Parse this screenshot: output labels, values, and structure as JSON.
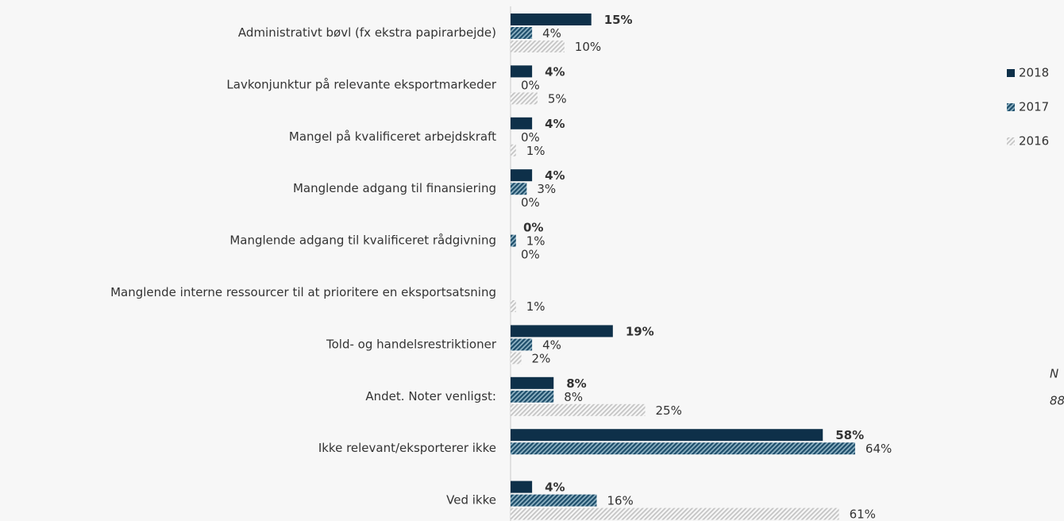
{
  "chart_data": {
    "type": "hbar",
    "categories": [
      "Administrativt bøvl (fx ekstra papirarbejde)",
      "Lavkonjunktur på relevante eksportmarkeder",
      "Mangel på kvalificeret arbejdskraft",
      "Manglende adgang til finansiering",
      "Manglende adgang til kvalificeret rådgivning",
      "Manglende interne ressourcer til at prioritere en eksportsatsning",
      "Told- og handelsrestriktioner",
      "Andet. Noter venligst:",
      "Ikke relevant/eksporterer ikke",
      "Ved ikke"
    ],
    "series": [
      {
        "name": "2018",
        "color": "#0e3049",
        "hatch": false,
        "values": [
          15,
          4,
          4,
          4,
          0,
          null,
          19,
          8,
          58,
          4
        ],
        "value_labels": [
          "15%",
          "4%",
          "4%",
          "4%",
          "0%",
          null,
          "19%",
          "8%",
          "58%",
          "4%"
        ]
      },
      {
        "name": "2017",
        "color": "#1d4d6a",
        "hatch": true,
        "values": [
          4,
          0,
          0,
          3,
          1,
          null,
          4,
          8,
          64,
          16
        ],
        "value_labels": [
          "4%",
          "0%",
          "0%",
          "3%",
          "1%",
          null,
          "4%",
          "8%",
          "64%",
          "16%"
        ]
      },
      {
        "name": "2016",
        "color": "#c4c4c4",
        "hatch": true,
        "values": [
          10,
          5,
          1,
          0,
          0,
          1,
          2,
          25,
          null,
          61
        ],
        "value_labels": [
          "10%",
          "5%",
          "1%",
          "0%",
          "0%",
          "1%",
          "2%",
          "25%",
          null,
          "61%"
        ]
      }
    ],
    "legend": "right",
    "annotations": [
      "N",
      "88"
    ]
  }
}
